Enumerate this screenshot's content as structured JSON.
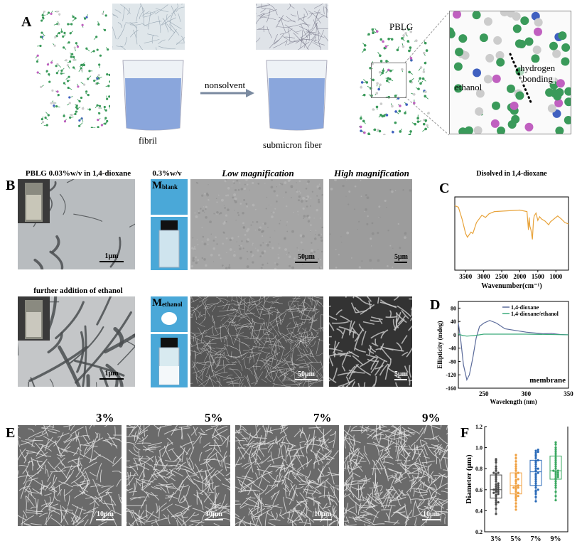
{
  "panels": {
    "a": {
      "label": "A",
      "fibril": "fibril",
      "nonsolvent": "nonsolvent",
      "submicron": "submicron fiber",
      "pblg": "PBLG",
      "ethanol": "ethanol",
      "hbond1": "hydrogen",
      "hbond2": "bonding"
    },
    "b": {
      "label": "B",
      "row1_title": "PBLG 0.03%w/v in 1,4-dioxane",
      "conc": "0.3%w/v",
      "low": "Low magnification",
      "high": "High magnification",
      "row2_title": "further addition of ethanol",
      "m_blank": "M",
      "m_blank_sub": "blank",
      "m_ethanol": "M",
      "m_ethanol_sub": "ethanol",
      "scale_tem": "1μm",
      "scale_low": "50μm",
      "scale_high": "5μm"
    },
    "e": {
      "label": "E",
      "labels": [
        "3%",
        "5%",
        "7%",
        "9%"
      ],
      "scale": "10μm"
    }
  },
  "colors": {
    "ftir": "#e8a33a",
    "dioxane": "#5a6a9a",
    "ethanol_line": "#3aaa7a",
    "f_series": [
      "#4a4a4a",
      "#f0a040",
      "#2a6ab8",
      "#3aa860"
    ],
    "sem_blue": "#4aa8d8"
  },
  "chart_data": [
    {
      "panel": "C",
      "type": "line",
      "title": "Disolved in 1,4-dioxane",
      "xlabel": "Wavenumber(cm⁻¹)",
      "ylabel": "",
      "xlim": [
        3800,
        650
      ],
      "x_reversed": true,
      "ylim": [
        0,
        1
      ],
      "xticks": [
        "3500",
        "3000",
        "2500",
        "2000",
        "1500",
        "1000"
      ],
      "xtick_values": [
        3500,
        3000,
        2500,
        2000,
        1500,
        1000
      ],
      "x": [
        3800,
        3700,
        3600,
        3500,
        3450,
        3350,
        3300,
        3200,
        3050,
        2950,
        2850,
        2700,
        2000,
        1800,
        1760,
        1740,
        1720,
        1690,
        1650,
        1620,
        1600,
        1550,
        1500,
        1450,
        1400,
        1300,
        1200,
        1150,
        1050,
        950,
        850,
        750,
        650
      ],
      "y": [
        0.88,
        0.86,
        0.7,
        0.5,
        0.45,
        0.52,
        0.5,
        0.65,
        0.75,
        0.72,
        0.77,
        0.8,
        0.82,
        0.8,
        0.55,
        0.72,
        0.6,
        0.55,
        0.42,
        0.68,
        0.74,
        0.78,
        0.68,
        0.73,
        0.7,
        0.67,
        0.62,
        0.66,
        0.7,
        0.74,
        0.7,
        0.65,
        0.63
      ]
    },
    {
      "panel": "D",
      "type": "line",
      "title": "",
      "xlabel": "Wavelength (nm)",
      "ylabel": "Ellipticity (mdeg)",
      "annotation": "membrane",
      "xlim": [
        220,
        350
      ],
      "ylim": [
        -160,
        100
      ],
      "xticks": [
        "250",
        "300",
        "350"
      ],
      "xtick_values": [
        250,
        300,
        350
      ],
      "yticks": [
        "80",
        "40",
        "0",
        "-40",
        "-80",
        "-120",
        "-160"
      ],
      "ytick_values": [
        80,
        40,
        0,
        -40,
        -80,
        -120,
        -160
      ],
      "legend": "top-right",
      "series": [
        {
          "name": "1,4-dioxane",
          "x": [
            220,
            223,
            226,
            230,
            233,
            237,
            241,
            245,
            250,
            257,
            265,
            275,
            290,
            300,
            320,
            330,
            340,
            350
          ],
          "y": [
            35,
            -20,
            -90,
            -135,
            -120,
            -70,
            -10,
            25,
            35,
            43,
            35,
            18,
            12,
            8,
            3,
            4,
            1,
            0
          ]
        },
        {
          "name": "1,4-dioxane/ethanol",
          "x": [
            220,
            225,
            230,
            240,
            250,
            300,
            350
          ],
          "y": [
            2,
            -2,
            -4,
            -2,
            2,
            2,
            0
          ]
        }
      ]
    },
    {
      "panel": "F",
      "type": "scatter",
      "title": "",
      "xlabel": "",
      "ylabel": "Diameter (μm)",
      "ylim": [
        0.2,
        1.2
      ],
      "yticks": [
        "1.2",
        "1.0",
        "0.8",
        "0.6",
        "0.4",
        "0.2"
      ],
      "ytick_values": [
        1.2,
        1.0,
        0.8,
        0.6,
        0.4,
        0.2
      ],
      "categories": [
        "3%",
        "5%",
        "7%",
        "9%"
      ],
      "series": [
        {
          "values": [
            0.37,
            0.42,
            0.46,
            0.48,
            0.48,
            0.5,
            0.52,
            0.54,
            0.55,
            0.56,
            0.57,
            0.58,
            0.58,
            0.59,
            0.6,
            0.6,
            0.61,
            0.62,
            0.63,
            0.64,
            0.65,
            0.66,
            0.68,
            0.7,
            0.72,
            0.74,
            0.75,
            0.76,
            0.76,
            0.78,
            0.8,
            0.82,
            0.86,
            0.88,
            0.89
          ],
          "box": [
            0.52,
            0.6,
            0.74
          ]
        },
        {
          "values": [
            0.41,
            0.44,
            0.47,
            0.5,
            0.52,
            0.53,
            0.54,
            0.55,
            0.57,
            0.58,
            0.6,
            0.61,
            0.62,
            0.62,
            0.63,
            0.64,
            0.66,
            0.68,
            0.69,
            0.7,
            0.72,
            0.74,
            0.75,
            0.76,
            0.78,
            0.8,
            0.82,
            0.84,
            0.87,
            0.9,
            0.93
          ],
          "box": [
            0.56,
            0.64,
            0.76
          ]
        },
        {
          "values": [
            0.49,
            0.53,
            0.56,
            0.58,
            0.59,
            0.6,
            0.62,
            0.64,
            0.66,
            0.68,
            0.7,
            0.72,
            0.74,
            0.75,
            0.76,
            0.78,
            0.8,
            0.8,
            0.82,
            0.84,
            0.86,
            0.87,
            0.88,
            0.9,
            0.92,
            0.93,
            0.95,
            0.96,
            0.97,
            0.98
          ],
          "box": [
            0.64,
            0.77,
            0.88
          ]
        },
        {
          "values": [
            0.5,
            0.54,
            0.58,
            0.62,
            0.64,
            0.66,
            0.68,
            0.7,
            0.71,
            0.72,
            0.73,
            0.74,
            0.75,
            0.76,
            0.77,
            0.78,
            0.78,
            0.8,
            0.82,
            0.84,
            0.86,
            0.88,
            0.9,
            0.92,
            0.94,
            0.96,
            0.98,
            1.0,
            1.03,
            1.05
          ],
          "box": [
            0.7,
            0.78,
            0.92
          ]
        }
      ]
    }
  ]
}
